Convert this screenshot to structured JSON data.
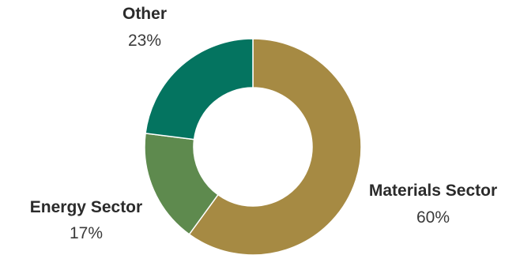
{
  "chart_data": {
    "type": "pie",
    "variant": "donut",
    "title": "",
    "slices": [
      {
        "label": "Materials Sector",
        "value": 60,
        "value_label": "60%",
        "color": "#a68a43"
      },
      {
        "label": "Energy Sector",
        "value": 17,
        "value_label": "17%",
        "color": "#5e8a4e"
      },
      {
        "label": "Other",
        "value": 23,
        "value_label": "23%",
        "color": "#047460"
      }
    ],
    "legend": "none",
    "start_angle": "top",
    "direction": "clockwise"
  }
}
